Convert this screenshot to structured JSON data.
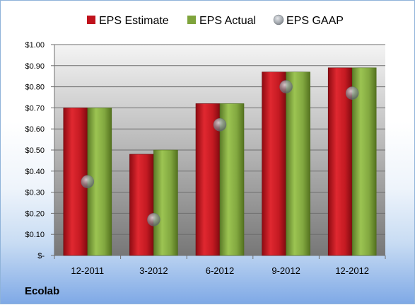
{
  "company": "Ecolab",
  "colors": {
    "estimate": "#c0121c",
    "actual": "#7fa43c",
    "gaap": "#9aa2ab"
  },
  "chart_data": {
    "type": "bar",
    "categories": [
      "12-2011",
      "3-2012",
      "6-2012",
      "9-2012",
      "12-2012"
    ],
    "series": [
      {
        "name": "EPS Estimate",
        "kind": "bar",
        "values": [
          0.7,
          0.48,
          0.72,
          0.87,
          0.89
        ]
      },
      {
        "name": "EPS Actual",
        "kind": "bar",
        "values": [
          0.7,
          0.5,
          0.72,
          0.87,
          0.89
        ]
      },
      {
        "name": "EPS GAAP",
        "kind": "scatter",
        "values": [
          0.35,
          0.17,
          0.62,
          0.8,
          0.77
        ]
      }
    ],
    "ylim": [
      0,
      1.0
    ],
    "yticks": [
      0,
      0.1,
      0.2,
      0.3,
      0.4,
      0.5,
      0.6,
      0.7,
      0.8,
      0.9,
      1.0
    ],
    "ytick_labels": [
      "$-",
      "$0.10",
      "$0.20",
      "$0.30",
      "$0.40",
      "$0.50",
      "$0.60",
      "$0.70",
      "$0.80",
      "$0.90",
      "$1.00"
    ],
    "legend_position": "top",
    "grid": true
  }
}
